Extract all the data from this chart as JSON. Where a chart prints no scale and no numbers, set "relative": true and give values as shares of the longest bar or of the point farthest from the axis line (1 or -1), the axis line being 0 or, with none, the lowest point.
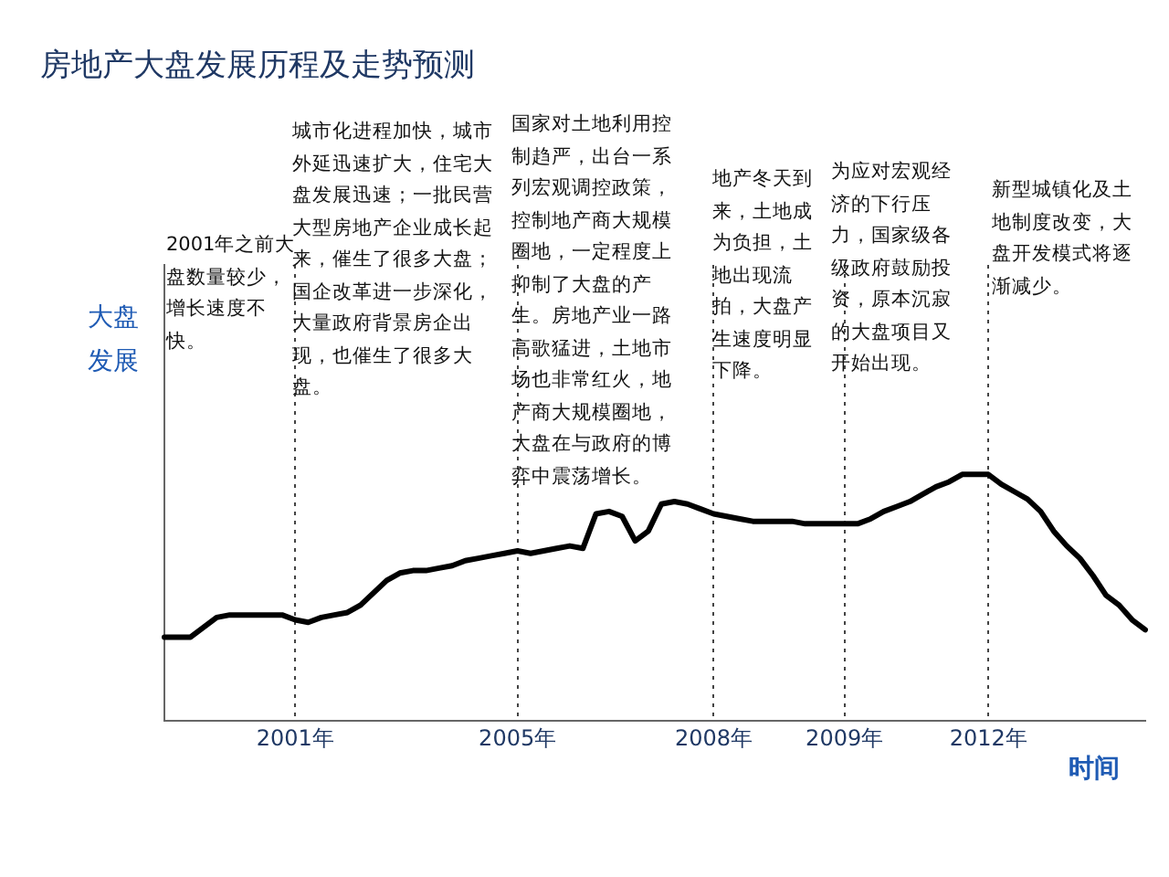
{
  "chart_data": {
    "type": "line",
    "title": "房地产大盘发展历程及走势预测",
    "ylabel": "大盘发展",
    "xlabel": "时间",
    "relative": true,
    "grid": "x",
    "legend": false,
    "tick_labels": "x",
    "categories": [
      null,
      null,
      null,
      null,
      null,
      null,
      null,
      null,
      null,
      null,
      "2001年",
      null,
      null,
      null,
      null,
      null,
      null,
      null,
      null,
      null,
      null,
      null,
      null,
      null,
      null,
      null,
      null,
      "2005年",
      null,
      null,
      null,
      null,
      null,
      null,
      null,
      null,
      null,
      null,
      null,
      null,
      null,
      null,
      "2008年",
      null,
      null,
      null,
      null,
      null,
      null,
      null,
      null,
      null,
      "2009年",
      null,
      null,
      null,
      null,
      null,
      null,
      null,
      null,
      null,
      null,
      "2012年",
      null,
      null,
      null,
      null,
      null,
      null,
      null,
      null,
      null,
      null,
      null,
      null
    ],
    "series": [
      {
        "color": "#000000",
        "values": [
          0.34,
          0.34,
          0.34,
          0.38,
          0.42,
          0.43,
          0.43,
          0.43,
          0.43,
          0.43,
          0.41,
          0.4,
          0.42,
          0.43,
          0.44,
          0.47,
          0.52,
          0.57,
          0.6,
          0.61,
          0.61,
          0.62,
          0.63,
          0.65,
          0.66,
          0.67,
          0.68,
          0.69,
          0.68,
          0.69,
          0.7,
          0.71,
          0.7,
          0.84,
          0.85,
          0.83,
          0.73,
          0.77,
          0.88,
          0.89,
          0.88,
          0.86,
          0.84,
          0.83,
          0.82,
          0.81,
          0.81,
          0.81,
          0.81,
          0.8,
          0.8,
          0.8,
          0.8,
          0.8,
          0.82,
          0.85,
          0.87,
          0.89,
          0.92,
          0.95,
          0.97,
          1,
          1,
          1,
          0.96,
          0.93,
          0.9,
          0.85,
          0.77,
          0.71,
          0.66,
          0.59,
          0.51,
          0.47,
          0.41,
          0.37
        ]
      }
    ],
    "annotations": [
      "2001年之前大盘数量较少，增长速度不快。",
      "城市化进程加快，城市外延迅速扩大，住宅大盘发展迅速；一批民营大型房地产企业成长起来，催生了很多大盘；国企改革进一步深化，大量政府背景房企出现，也催生了很多大盘。",
      "国家对土地利用控制趋严，出台一系列宏观调控政策，控制地产商大规模圈地，一定程度上抑制了大盘的产生。房地产业一路高歌猛进，土地市场也非常红火，地产商大规模圈地，大盘在与政府的博弈中震荡增长。",
      "地产冬天到来，土地成为负担，土地出现流拍，大盘产生速度明显下降。",
      "为应对宏观经济的下行压力，国家级各级政府鼓励投资，原本沉寂的大盘项目又开始出现。",
      "新型城镇化及土地制度改变，大盘开发模式将逐渐减少。"
    ]
  }
}
